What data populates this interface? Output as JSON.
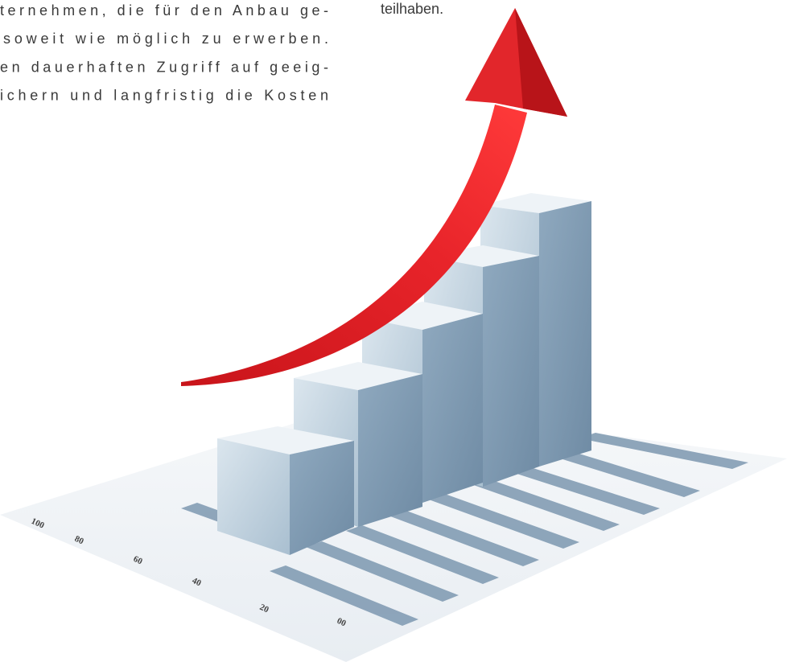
{
  "text": {
    "left_lines": [
      "ternehmen, die für den Anbau ge-",
      "soweit wie möglich zu erwerben.",
      "en dauerhaften Zugriff auf geeig-",
      "ichern und langfristig die Kosten"
    ],
    "right_lines": [
      "teilhaben."
    ]
  },
  "image": {
    "axis_labels": [
      "100",
      "80",
      "60",
      "40",
      "20",
      "00"
    ]
  }
}
